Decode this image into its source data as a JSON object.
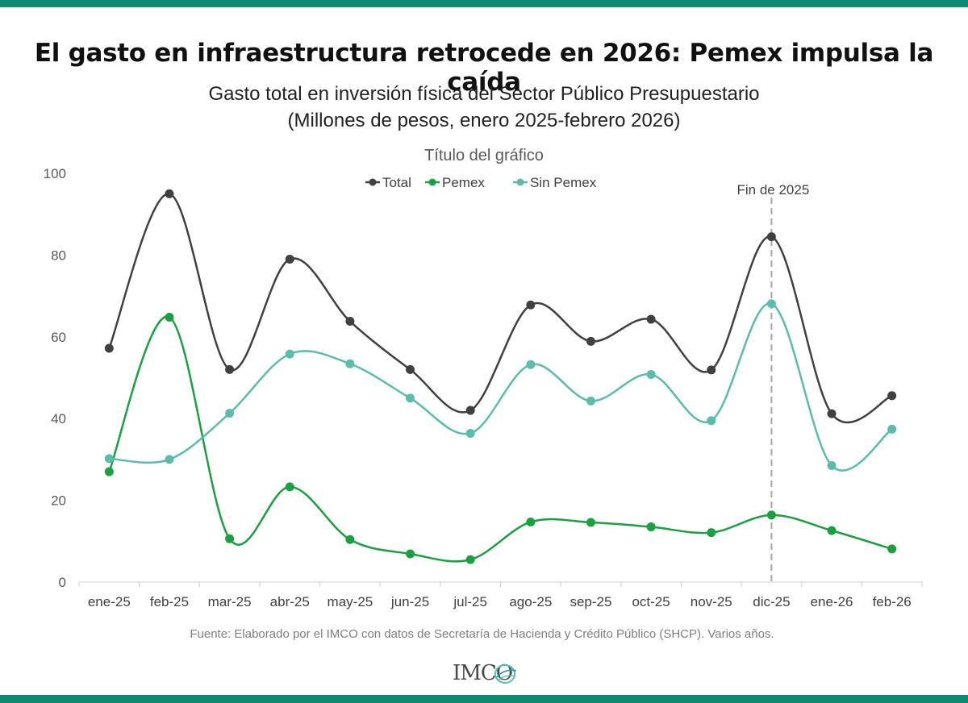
{
  "headline": "El gasto en infraestructura retrocede en 2026: Pemex impulsa la caída",
  "subtitle_line1": "Gasto total en inversión física del Sector Público Presupuestario",
  "subtitle_line2": "(Millones de pesos, enero 2025-febrero 2026)",
  "source": "Fuente: Elaborado por el IMCO con datos de Secretaría de Hacienda y Crédito Público (SHCP). Varios años.",
  "logo_text": "IMCO",
  "chart_data": {
    "type": "line",
    "title": "Título del gráfico",
    "categories": [
      "ene-25",
      "feb-25",
      "mar-25",
      "abr-25",
      "may-25",
      "jun-25",
      "jul-25",
      "ago-25",
      "sep-25",
      "oct-25",
      "nov-25",
      "dic-25",
      "ene-26",
      "feb-26"
    ],
    "series": [
      {
        "name": "Total",
        "color": "#404040",
        "values": [
          57.2,
          95.0,
          52.0,
          79.0,
          63.8,
          52.0,
          42.0,
          67.8,
          58.9,
          64.3,
          51.9,
          84.5,
          41.2,
          45.6
        ]
      },
      {
        "name": "Pemex",
        "color": "#1aa040",
        "values": [
          27.0,
          64.8,
          10.6,
          23.3,
          10.4,
          6.9,
          5.5,
          14.7,
          14.6,
          13.5,
          12.1,
          16.4,
          12.6,
          8.1
        ]
      },
      {
        "name": "Sin Pemex",
        "color": "#5bbcab",
        "values": [
          30.2,
          30.0,
          41.3,
          55.8,
          53.4,
          45.0,
          36.4,
          53.2,
          44.3,
          50.8,
          39.5,
          68.1,
          28.5,
          37.4
        ]
      }
    ],
    "yticks": [
      0,
      20,
      40,
      60,
      80,
      100
    ],
    "ylim": [
      0,
      100
    ],
    "smooth": true,
    "legend_position": "top",
    "grid": false,
    "annotation": {
      "text": "Fin de 2025",
      "category": "dic-25",
      "style": "dashed vertical line"
    }
  }
}
